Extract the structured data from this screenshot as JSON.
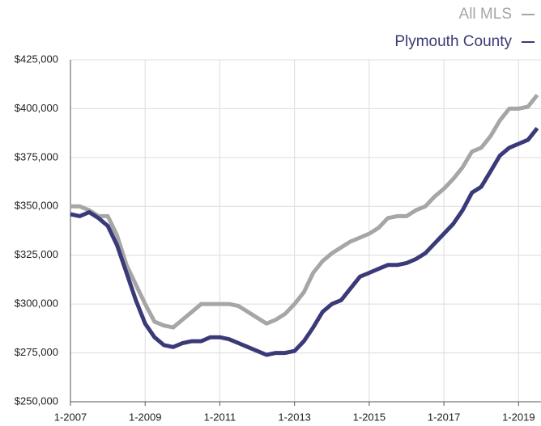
{
  "chart_data": {
    "type": "line",
    "x": [
      2007,
      2007.25,
      2007.5,
      2007.75,
      2008,
      2008.25,
      2008.5,
      2008.75,
      2009,
      2009.25,
      2009.5,
      2009.75,
      2010,
      2010.25,
      2010.5,
      2010.75,
      2011,
      2011.25,
      2011.5,
      2011.75,
      2012,
      2012.25,
      2012.5,
      2012.75,
      2013,
      2013.25,
      2013.5,
      2013.75,
      2014,
      2014.25,
      2014.5,
      2014.75,
      2015,
      2015.25,
      2015.5,
      2015.75,
      2016,
      2016.25,
      2016.5,
      2016.75,
      2017,
      2017.25,
      2017.5,
      2017.75,
      2018,
      2018.25,
      2018.5,
      2018.75,
      2019,
      2019.25,
      2019.5
    ],
    "series": [
      {
        "name": "All MLS",
        "color": "#a6a6a6",
        "values": [
          350000,
          350000,
          348000,
          345000,
          345000,
          335000,
          320000,
          310000,
          300000,
          291000,
          289000,
          288000,
          292000,
          296000,
          300000,
          300000,
          300000,
          300000,
          299000,
          296000,
          293000,
          290000,
          292000,
          295000,
          300000,
          306000,
          316000,
          322000,
          326000,
          329000,
          332000,
          334000,
          336000,
          339000,
          344000,
          345000,
          345000,
          348000,
          350000,
          355000,
          359000,
          364000,
          370000,
          378000,
          380000,
          386000,
          394000,
          400000,
          400000,
          401000,
          407000
        ]
      },
      {
        "name": "Plymouth County",
        "color": "#3a3a78",
        "values": [
          346000,
          345000,
          347000,
          344000,
          340000,
          330000,
          316000,
          302000,
          290000,
          283000,
          279000,
          278000,
          280000,
          281000,
          281000,
          283000,
          283000,
          282000,
          280000,
          278000,
          276000,
          274000,
          275000,
          275000,
          276000,
          281000,
          288000,
          296000,
          300000,
          302000,
          308000,
          314000,
          316000,
          318000,
          320000,
          320000,
          321000,
          323000,
          326000,
          331000,
          336000,
          341000,
          348000,
          357000,
          360000,
          368000,
          376000,
          380000,
          382000,
          384000,
          390000
        ]
      }
    ],
    "xlim": [
      2007,
      2019.6
    ],
    "xticks": [
      {
        "value": 2007,
        "label": "1-2007"
      },
      {
        "value": 2009,
        "label": "1-2009"
      },
      {
        "value": 2011,
        "label": "1-2011"
      },
      {
        "value": 2013,
        "label": "1-2013"
      },
      {
        "value": 2015,
        "label": "1-2015"
      },
      {
        "value": 2017,
        "label": "1-2017"
      },
      {
        "value": 2019,
        "label": "1-2019"
      }
    ],
    "ylim": [
      250000,
      425000
    ],
    "yticks": [
      {
        "value": 250000,
        "label": "$250,000"
      },
      {
        "value": 275000,
        "label": "$275,000"
      },
      {
        "value": 300000,
        "label": "$300,000"
      },
      {
        "value": 325000,
        "label": "$325,000"
      },
      {
        "value": 350000,
        "label": "$350,000"
      },
      {
        "value": 375000,
        "label": "$375,000"
      },
      {
        "value": 400000,
        "label": "$400,000"
      },
      {
        "value": 425000,
        "label": "$425,000"
      }
    ],
    "grid": true
  }
}
